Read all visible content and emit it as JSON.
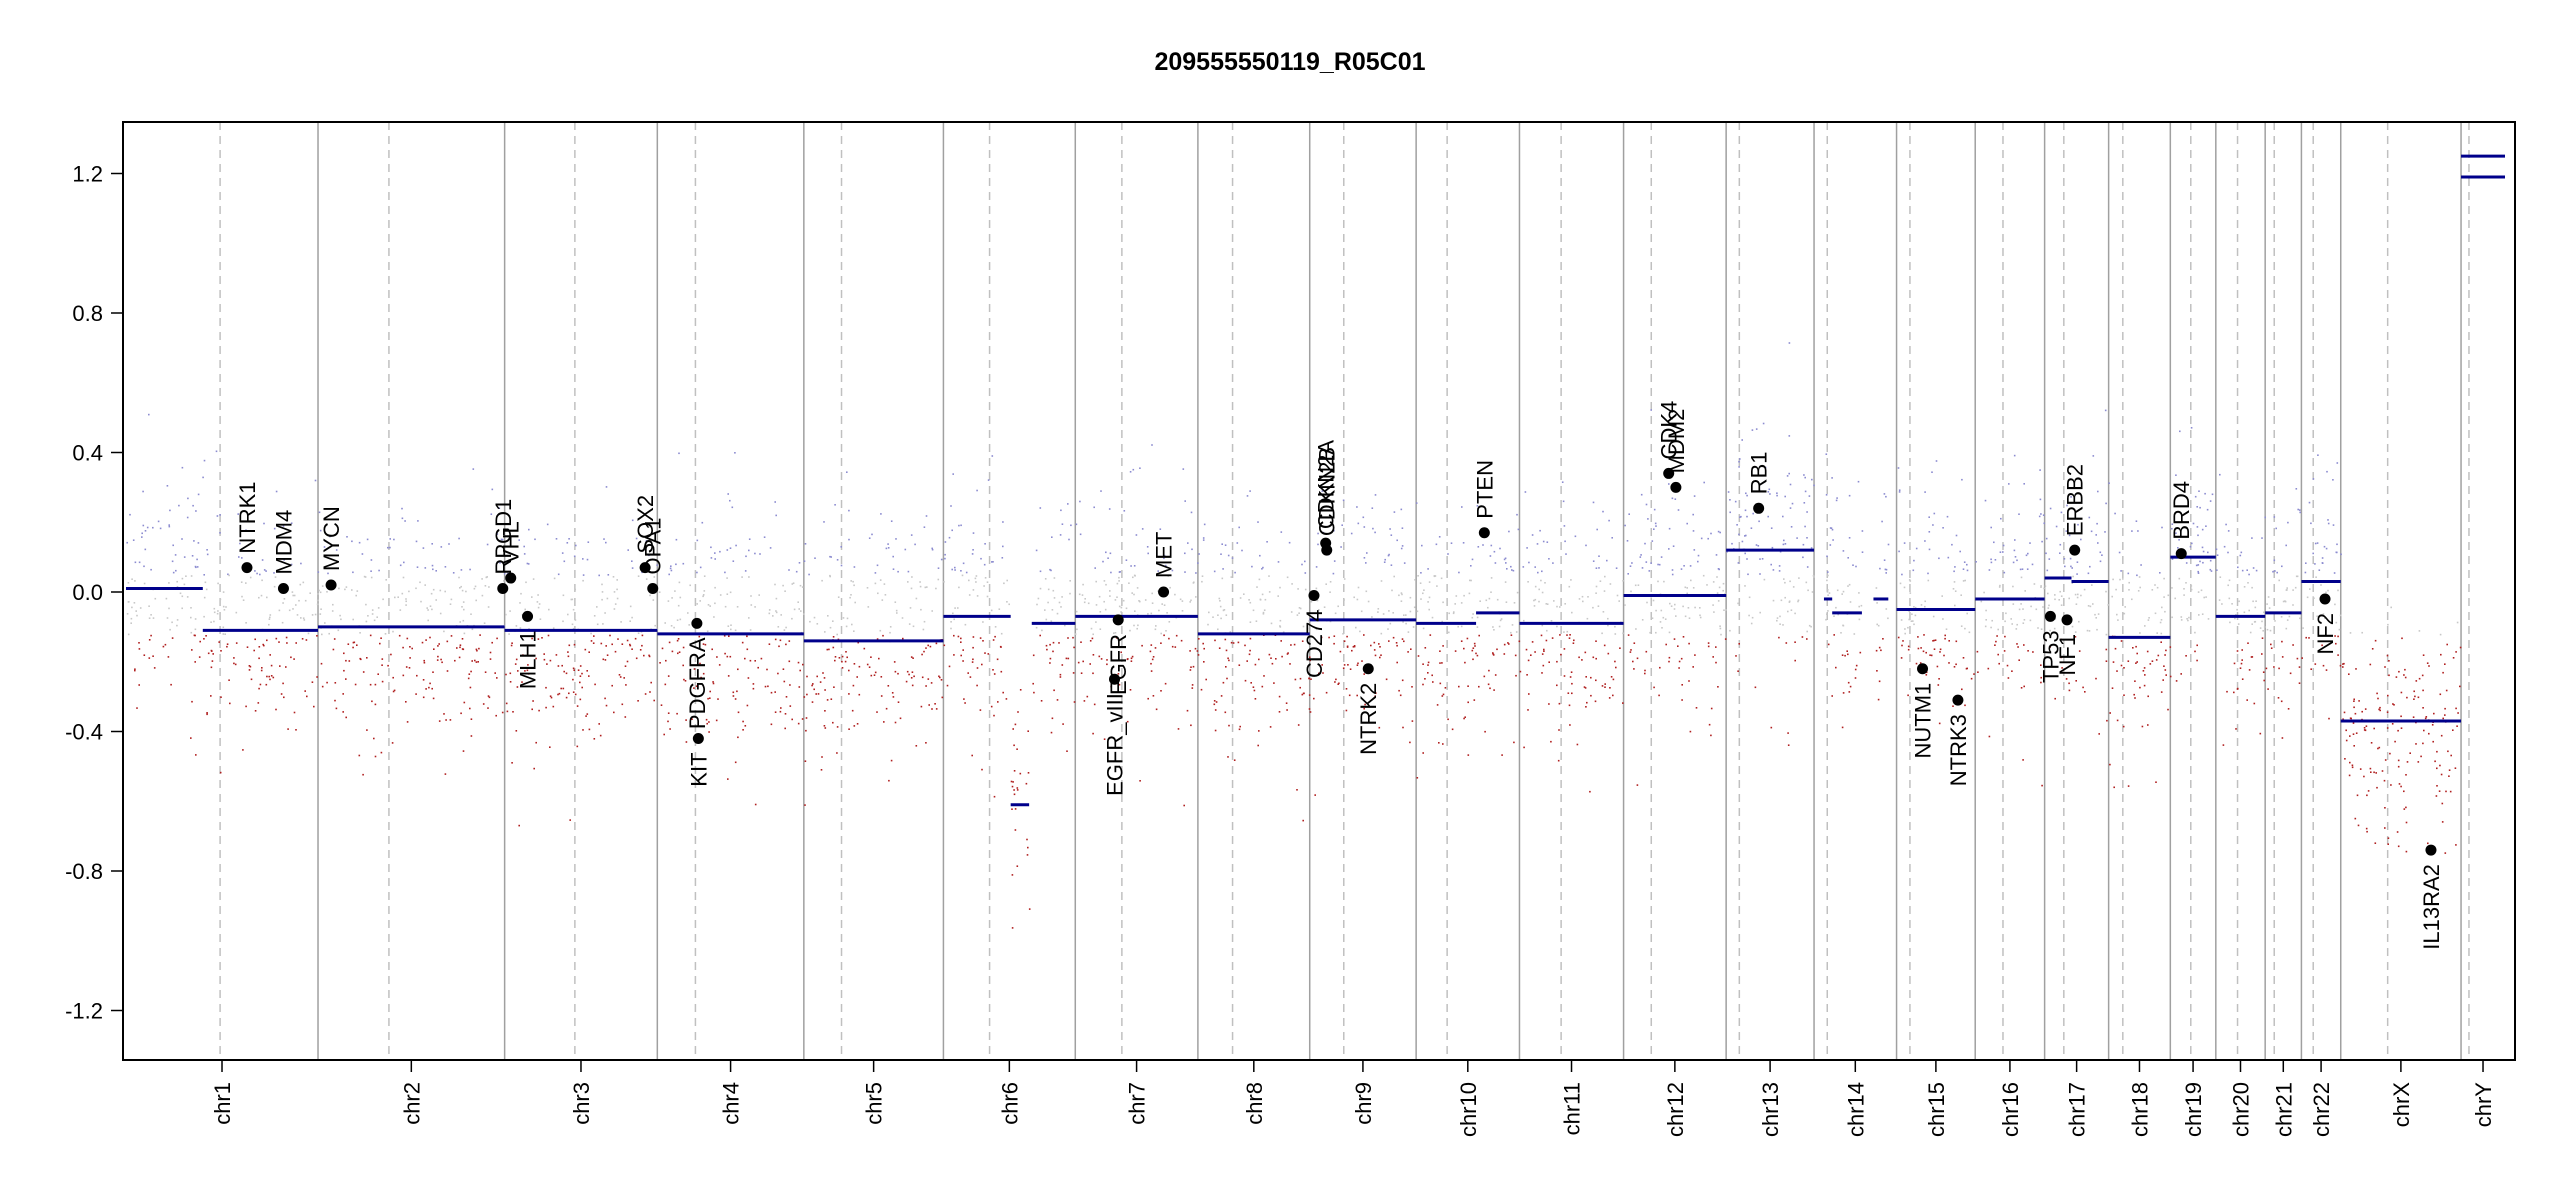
{
  "chart_data": {
    "type": "scatter",
    "title": "209555550119_R05C01",
    "xlabel": "",
    "ylabel": "",
    "ylim": [
      -1.35,
      1.35
    ],
    "yticks": [
      -1.2,
      -0.8,
      -0.4,
      0.0,
      0.4,
      0.8,
      1.2
    ],
    "ytick_labels": [
      "-1.2",
      "-0.8",
      "-0.4",
      "0.0",
      "0.4",
      "0.8",
      "1.2"
    ],
    "grid": false,
    "colors": {
      "gain": "#8c8cd0",
      "neutral": "#c8c8c8",
      "loss": "#b02020",
      "segment": "#00008b",
      "gene_point": "#000000",
      "chr_boundary": "#a0a0a0",
      "centromere": "#c0c0c0"
    },
    "chromosomes": [
      {
        "name": "chr1",
        "size": 249,
        "centro": 0.49
      },
      {
        "name": "chr2",
        "size": 242,
        "centro": 0.38
      },
      {
        "name": "chr3",
        "size": 198,
        "centro": 0.46
      },
      {
        "name": "chr4",
        "size": 190,
        "centro": 0.26
      },
      {
        "name": "chr5",
        "size": 181,
        "centro": 0.27
      },
      {
        "name": "chr6",
        "size": 171,
        "centro": 0.35
      },
      {
        "name": "chr7",
        "size": 159,
        "centro": 0.38
      },
      {
        "name": "chr8",
        "size": 145,
        "centro": 0.31
      },
      {
        "name": "chr9",
        "size": 138,
        "centro": 0.32
      },
      {
        "name": "chr10",
        "size": 134,
        "centro": 0.3
      },
      {
        "name": "chr11",
        "size": 135,
        "centro": 0.4
      },
      {
        "name": "chr12",
        "size": 133,
        "centro": 0.27
      },
      {
        "name": "chr13",
        "size": 114,
        "centro": 0.15
      },
      {
        "name": "chr14",
        "size": 107,
        "centro": 0.16
      },
      {
        "name": "chr15",
        "size": 102,
        "centro": 0.17
      },
      {
        "name": "chr16",
        "size": 90,
        "centro": 0.4
      },
      {
        "name": "chr17",
        "size": 83,
        "centro": 0.3
      },
      {
        "name": "chr18",
        "size": 80,
        "centro": 0.23
      },
      {
        "name": "chr19",
        "size": 59,
        "centro": 0.45
      },
      {
        "name": "chr20",
        "size": 64,
        "centro": 0.44
      },
      {
        "name": "chr21",
        "size": 47,
        "centro": 0.25
      },
      {
        "name": "chr22",
        "size": 51,
        "centro": 0.3
      },
      {
        "name": "chrX",
        "size": 156,
        "centro": 0.39
      },
      {
        "name": "chrY",
        "size": 57,
        "centro": 0.18
      }
    ],
    "segments": [
      {
        "chr": "chr1",
        "start": 0.0,
        "end": 0.4,
        "value": 0.01
      },
      {
        "chr": "chr1",
        "start": 0.4,
        "end": 1.0,
        "value": -0.11
      },
      {
        "chr": "chr2",
        "start": 0.0,
        "end": 1.0,
        "value": -0.1
      },
      {
        "chr": "chr3",
        "start": 0.0,
        "end": 1.0,
        "value": -0.11
      },
      {
        "chr": "chr4",
        "start": 0.0,
        "end": 1.0,
        "value": -0.12
      },
      {
        "chr": "chr5",
        "start": 0.0,
        "end": 1.0,
        "value": -0.14
      },
      {
        "chr": "chr6",
        "start": 0.0,
        "end": 0.51,
        "value": -0.07
      },
      {
        "chr": "chr6",
        "start": 0.51,
        "end": 0.65,
        "value": -0.61
      },
      {
        "chr": "chr6",
        "start": 0.67,
        "end": 1.0,
        "value": -0.09
      },
      {
        "chr": "chr7",
        "start": 0.0,
        "end": 1.0,
        "value": -0.07
      },
      {
        "chr": "chr8",
        "start": 0.0,
        "end": 1.0,
        "value": -0.12
      },
      {
        "chr": "chr9",
        "start": 0.0,
        "end": 1.0,
        "value": -0.08
      },
      {
        "chr": "chr10",
        "start": 0.0,
        "end": 0.58,
        "value": -0.09
      },
      {
        "chr": "chr10",
        "start": 0.58,
        "end": 1.0,
        "value": -0.06
      },
      {
        "chr": "chr11",
        "start": 0.0,
        "end": 1.0,
        "value": -0.09
      },
      {
        "chr": "chr12",
        "start": 0.0,
        "end": 1.0,
        "value": -0.01
      },
      {
        "chr": "chr13",
        "start": 0.0,
        "end": 1.0,
        "value": 0.12
      },
      {
        "chr": "chr14",
        "start": 0.12,
        "end": 0.22,
        "value": -0.02
      },
      {
        "chr": "chr14",
        "start": 0.22,
        "end": 0.58,
        "value": -0.06
      },
      {
        "chr": "chr14",
        "start": 0.72,
        "end": 0.9,
        "value": -0.02
      },
      {
        "chr": "chr15",
        "start": 0.0,
        "end": 1.0,
        "value": -0.05
      },
      {
        "chr": "chr16",
        "start": 0.0,
        "end": 1.0,
        "value": -0.02
      },
      {
        "chr": "chr17",
        "start": 0.0,
        "end": 0.42,
        "value": 0.04
      },
      {
        "chr": "chr17",
        "start": 0.42,
        "end": 1.0,
        "value": 0.03
      },
      {
        "chr": "chr18",
        "start": 0.0,
        "end": 1.0,
        "value": -0.13
      },
      {
        "chr": "chr19",
        "start": 0.0,
        "end": 1.0,
        "value": 0.1
      },
      {
        "chr": "chr20",
        "start": 0.0,
        "end": 1.0,
        "value": -0.07
      },
      {
        "chr": "chr21",
        "start": 0.0,
        "end": 1.0,
        "value": -0.06
      },
      {
        "chr": "chr22",
        "start": 0.0,
        "end": 1.0,
        "value": 0.03
      },
      {
        "chr": "chrX",
        "start": 0.0,
        "end": 1.0,
        "value": -0.37
      },
      {
        "chr": "chrY",
        "start": 0.0,
        "end": 1.0,
        "value": 1.19
      },
      {
        "chr": "chrY",
        "start": 0.0,
        "end": 1.0,
        "value": 1.25
      }
    ],
    "genes": [
      {
        "name": "NTRK1",
        "chr": "chr1",
        "pos": 0.63,
        "value": 0.07
      },
      {
        "name": "MDM4",
        "chr": "chr1",
        "pos": 0.82,
        "value": 0.01
      },
      {
        "name": "MYCN",
        "chr": "chr2",
        "pos": 0.07,
        "value": 0.02
      },
      {
        "name": "RPGD1",
        "chr": "chr2",
        "pos": 0.99,
        "value": 0.01
      },
      {
        "name": "VHL",
        "chr": "chr3",
        "pos": 0.04,
        "value": 0.04
      },
      {
        "name": "MLH1",
        "chr": "chr3",
        "pos": 0.15,
        "value": -0.07
      },
      {
        "name": "SOX2",
        "chr": "chr3",
        "pos": 0.92,
        "value": 0.07
      },
      {
        "name": "OPA1",
        "chr": "chr3",
        "pos": 0.97,
        "value": 0.01
      },
      {
        "name": "KIT",
        "chr": "chr4",
        "pos": 0.28,
        "value": -0.42
      },
      {
        "name": "PDGFRA",
        "chr": "chr4",
        "pos": 0.27,
        "value": -0.09
      },
      {
        "name": "EGFR_vIII",
        "chr": "chr7",
        "pos": 0.32,
        "value": -0.25
      },
      {
        "name": "EGFR",
        "chr": "chr7",
        "pos": 0.35,
        "value": -0.08
      },
      {
        "name": "MET",
        "chr": "chr7",
        "pos": 0.72,
        "value": 0.0
      },
      {
        "name": "CD274",
        "chr": "chr9",
        "pos": 0.04,
        "value": -0.01
      },
      {
        "name": "CDKN2A",
        "chr": "chr9",
        "pos": 0.15,
        "value": 0.14
      },
      {
        "name": "CDKN2B",
        "chr": "chr9",
        "pos": 0.16,
        "value": 0.12
      },
      {
        "name": "NTRK2",
        "chr": "chr9",
        "pos": 0.55,
        "value": -0.22
      },
      {
        "name": "PTEN",
        "chr": "chr10",
        "pos": 0.66,
        "value": 0.17
      },
      {
        "name": "CDK4",
        "chr": "chr12",
        "pos": 0.44,
        "value": 0.34
      },
      {
        "name": "MDM2",
        "chr": "chr12",
        "pos": 0.51,
        "value": 0.3
      },
      {
        "name": "RB1",
        "chr": "chr13",
        "pos": 0.37,
        "value": 0.24
      },
      {
        "name": "NUTM1",
        "chr": "chr15",
        "pos": 0.33,
        "value": -0.22
      },
      {
        "name": "NTRK3",
        "chr": "chr15",
        "pos": 0.78,
        "value": -0.31
      },
      {
        "name": "TP53",
        "chr": "chr17",
        "pos": 0.09,
        "value": -0.07
      },
      {
        "name": "NF1",
        "chr": "chr17",
        "pos": 0.35,
        "value": -0.08
      },
      {
        "name": "ERBB2",
        "chr": "chr17",
        "pos": 0.47,
        "value": 0.12
      },
      {
        "name": "BRD4",
        "chr": "chr19",
        "pos": 0.24,
        "value": 0.11
      },
      {
        "name": "NF2",
        "chr": "chr22",
        "pos": 0.6,
        "value": -0.02
      },
      {
        "name": "IL13RA2",
        "chr": "chrX",
        "pos": 0.75,
        "value": -0.74
      }
    ]
  }
}
